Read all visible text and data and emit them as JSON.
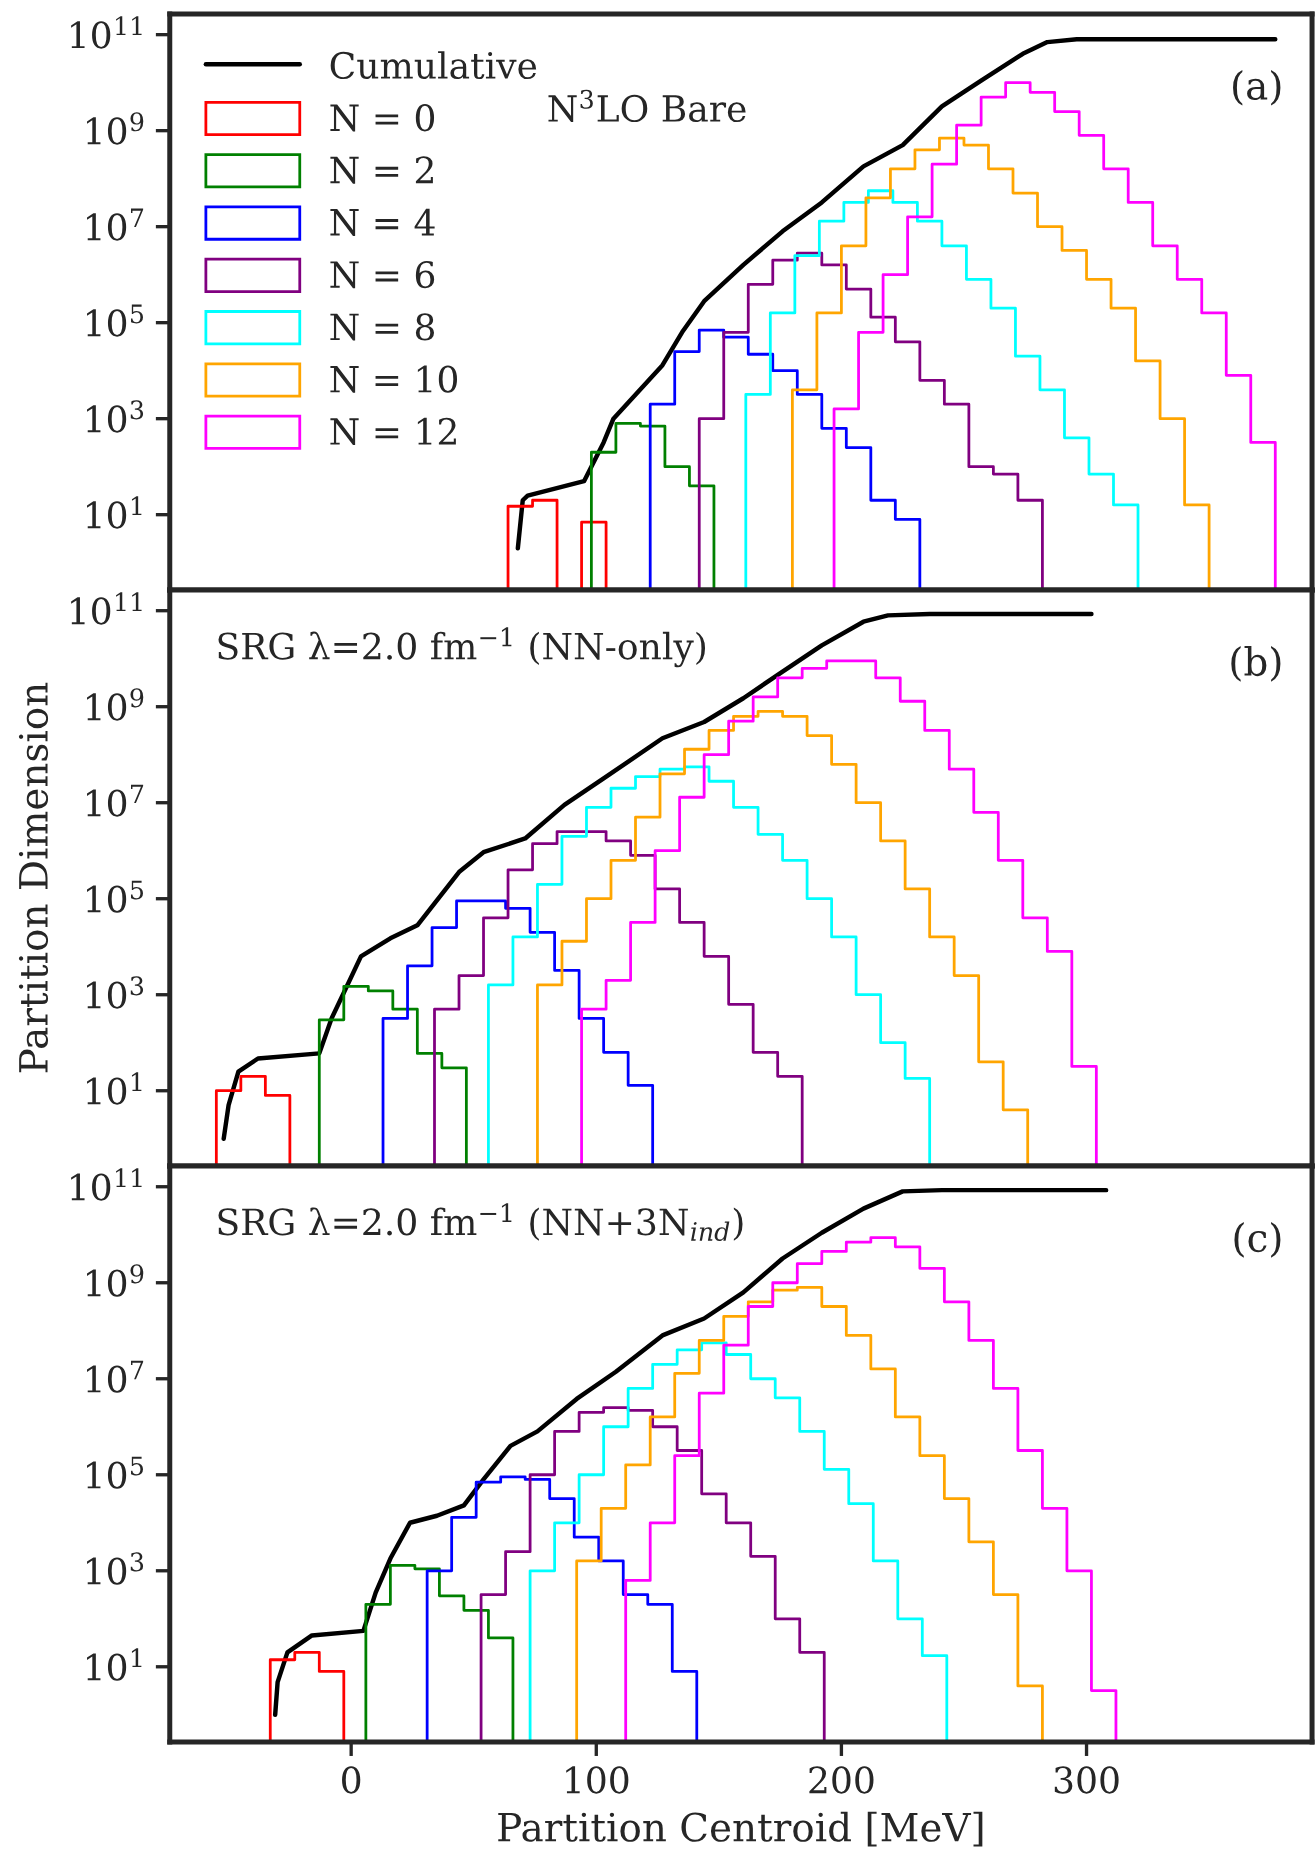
{
  "chart_data": [
    {
      "type": "histogram",
      "log": "y",
      "legend": "top left",
      "xlim": [
        -74,
        392
      ],
      "ylim": [
        0.27,
        270000000000.0
      ],
      "xticks": [
        0,
        100,
        200,
        300
      ],
      "tick_labels": "y",
      "grid": false,
      "yticks": [
        {
          "value": 10,
          "label": "10$^{1}$"
        },
        {
          "value": 1000,
          "label": "10$^{3}$"
        },
        {
          "value": 100000,
          "label": "10$^{5}$"
        },
        {
          "value": 10000000,
          "label": "10$^{7}$"
        },
        {
          "value": 1000000000,
          "label": "10$^{9}$"
        },
        {
          "value": 100000000000,
          "label": "10$^{11}$"
        }
      ],
      "annotations": [
        "(a)",
        "N$^{3}$LO Bare"
      ],
      "series": [
        {
          "name": "Cumulative",
          "type": "line",
          "color": "#000000",
          "x": [
            68,
            70,
            72,
            95,
            103,
            107,
            127,
            135,
            144,
            160,
            176,
            192,
            209,
            225,
            241,
            257,
            274,
            284,
            296,
            377
          ],
          "values": [
            2,
            20,
            25,
            50,
            320,
            1000,
            13000,
            63000,
            280000,
            1600000.0,
            8000000.0,
            32000000.0,
            180000000.0,
            500000000.0,
            3200000000.0,
            11000000000.0,
            40000000000.0,
            70000000000.0,
            80000000000.0,
            80000000000.0
          ]
        },
        {
          "name": "N = 0",
          "type": "histogram",
          "color": "#ff0000",
          "bins": [
            64,
            74,
            84,
            94,
            104
          ],
          "values": [
            15,
            20,
            null,
            7
          ]
        },
        {
          "name": "N = 2",
          "type": "histogram",
          "color": "#008000",
          "bins": [
            98,
            108,
            118,
            128,
            138,
            148
          ],
          "values": [
            200,
            800,
            700,
            100,
            40
          ]
        },
        {
          "name": "N = 4",
          "type": "histogram",
          "color": "#0000ff",
          "bins": [
            122,
            132,
            142,
            152,
            162,
            172,
            182,
            192,
            202,
            212,
            222,
            232
          ],
          "values": [
            2000,
            25000,
            70000,
            50000,
            22000,
            10000,
            3200,
            630,
            250,
            20,
            8
          ]
        },
        {
          "name": "N = 6",
          "type": "histogram",
          "color": "#800080",
          "bins": [
            142,
            152,
            162,
            172,
            182,
            192,
            202,
            212,
            222,
            232,
            242,
            252,
            262,
            272,
            282
          ],
          "values": [
            1000,
            63000,
            630000,
            2000000.0,
            2800000.0,
            1600000.0,
            500000,
            130000,
            40000,
            6300,
            2000,
            100,
            70,
            20
          ]
        },
        {
          "name": "N = 8",
          "type": "histogram",
          "color": "#00ffff",
          "bins": [
            161,
            171,
            181,
            191,
            201,
            211,
            221,
            231,
            241,
            251,
            261,
            271,
            281,
            291,
            301,
            311,
            321
          ],
          "values": [
            3200,
            160000,
            2500000.0,
            13000000.0,
            32000000.0,
            56000000.0,
            32000000.0,
            13000000.0,
            4000000.0,
            800000,
            200000,
            20000,
            4000,
            400,
            70,
            16
          ]
        },
        {
          "name": "N = 10",
          "type": "histogram",
          "color": "#ffa500",
          "bins": [
            180,
            190,
            200,
            210,
            220,
            230,
            240,
            250,
            260,
            270,
            280,
            290,
            300,
            310,
            320,
            330,
            340,
            350
          ],
          "values": [
            4000,
            160000,
            4000000.0,
            40000000.0,
            160000000.0,
            400000000.0,
            700000000.0,
            500000000.0,
            160000000.0,
            50000000.0,
            10000000.0,
            3200000.0,
            800000,
            200000,
            16000,
            1000,
            16
          ]
        },
        {
          "name": "N = 12",
          "type": "histogram",
          "color": "#ff00ff",
          "bins": [
            197,
            207,
            217,
            227,
            237,
            247,
            257,
            267,
            277,
            287,
            297,
            307,
            317,
            327,
            337,
            347,
            357,
            367,
            377
          ],
          "values": [
            1600,
            63000,
            1000000.0,
            16000000.0,
            200000000.0,
            1300000000.0,
            5000000000.0,
            10000000000.0,
            6300000000.0,
            2500000000.0,
            800000000.0,
            160000000.0,
            32000000.0,
            4000000.0,
            800000,
            160000,
            8000,
            320
          ]
        }
      ]
    },
    {
      "type": "histogram",
      "log": "y",
      "xlim": [
        -74,
        392
      ],
      "ylim": [
        0.27,
        270000000000.0
      ],
      "xticks": [
        0,
        100,
        200,
        300
      ],
      "tick_labels": "y",
      "grid": false,
      "ylabel": "Partition Dimension",
      "yticks": [
        {
          "value": 10,
          "label": "10$^{1}$"
        },
        {
          "value": 1000,
          "label": "10$^{3}$"
        },
        {
          "value": 100000,
          "label": "10$^{5}$"
        },
        {
          "value": 10000000,
          "label": "10$^{7}$"
        },
        {
          "value": 1000000000,
          "label": "10$^{9}$"
        },
        {
          "value": 100000000000,
          "label": "10$^{11}$"
        }
      ],
      "annotations": [
        "(b)",
        "SRG λ=2.0 fm$^{−1}$ (NN-only)"
      ],
      "series": [
        {
          "type": "line",
          "color": "#000000",
          "x": [
            -52,
            -50,
            -46,
            -38,
            -13,
            -8,
            -3,
            4,
            16,
            27,
            44,
            54,
            71,
            87,
            103,
            127,
            144,
            160,
            176,
            192,
            209,
            219,
            236,
            302
          ],
          "values": [
            1,
            5,
            25,
            47,
            60,
            320,
            1100,
            6300,
            15000,
            28000,
            360000,
            930000,
            1800000.0,
            9000000.0,
            32000000.0,
            220000000.0,
            480000000.0,
            1500000000.0,
            5400000000.0,
            19000000000.0,
            59000000000.0,
            80000000000.0,
            85000000000.0,
            85000000000.0
          ]
        },
        {
          "type": "histogram",
          "color": "#ff0000",
          "bins": [
            -55,
            -45,
            -35,
            -25
          ],
          "values": [
            10,
            20,
            8
          ]
        },
        {
          "type": "histogram",
          "color": "#008000",
          "bins": [
            -13,
            -3,
            7,
            17,
            27,
            37,
            47
          ],
          "values": [
            300,
            1500,
            1200,
            500,
            60,
            30
          ]
        },
        {
          "type": "histogram",
          "color": "#0000ff",
          "bins": [
            13,
            23,
            33,
            43,
            53,
            63,
            73,
            83,
            93,
            103,
            113,
            123
          ],
          "values": [
            320,
            4000,
            25000,
            90000,
            90000,
            63000,
            20000,
            3200,
            320,
            63,
            13
          ]
        },
        {
          "type": "histogram",
          "color": "#800080",
          "bins": [
            34,
            44,
            54,
            64,
            74,
            84,
            94,
            104,
            114,
            124,
            134,
            144,
            154,
            164,
            174,
            184
          ],
          "values": [
            500,
            2500,
            40000,
            400000,
            1400000.0,
            2500000.0,
            2500000.0,
            1600000.0,
            800000,
            160000,
            32000,
            6300,
            630,
            63,
            20
          ]
        },
        {
          "type": "histogram",
          "color": "#00ffff",
          "bins": [
            56,
            66,
            76,
            86,
            96,
            106,
            116,
            126,
            136,
            146,
            156,
            166,
            176,
            186,
            196,
            206,
            216,
            226,
            236
          ],
          "values": [
            1600,
            16000,
            200000,
            2000000.0,
            8000000.0,
            20000000.0,
            35000000.0,
            50000000.0,
            56000000.0,
            28000000.0,
            8000000.0,
            2200000.0,
            630000,
            100000,
            16000,
            1000,
            100,
            18
          ]
        },
        {
          "type": "histogram",
          "color": "#ffa500",
          "bins": [
            76,
            86,
            96,
            106,
            116,
            126,
            136,
            146,
            156,
            166,
            176,
            186,
            196,
            206,
            216,
            226,
            236,
            246,
            256,
            266,
            276
          ],
          "values": [
            1600,
            13000,
            100000,
            630000,
            5000000.0,
            40000000.0,
            130000000.0,
            320000000.0,
            630000000.0,
            800000000.0,
            630000000.0,
            250000000.0,
            63000000.0,
            10000000.0,
            1600000.0,
            160000,
            16000,
            2500,
            40,
            4
          ]
        },
        {
          "type": "histogram",
          "color": "#ff00ff",
          "bins": [
            94,
            104,
            114,
            124,
            134,
            144,
            154,
            164,
            174,
            184,
            194,
            204,
            214,
            224,
            234,
            244,
            254,
            264,
            274,
            284,
            294,
            304
          ],
          "values": [
            500,
            2000,
            32000,
            1000000.0,
            13000000.0,
            100000000.0,
            500000000.0,
            1600000000.0,
            4000000000.0,
            6300000000.0,
            9000000000.0,
            9000000000.0,
            4000000000.0,
            1300000000.0,
            320000000.0,
            50000000.0,
            6300000.0,
            630000,
            40000,
            8000,
            32
          ]
        }
      ]
    },
    {
      "type": "histogram",
      "log": "y",
      "xlim": [
        -74,
        392
      ],
      "ylim": [
        0.27,
        270000000000.0
      ],
      "xticks": [
        0,
        100,
        200,
        300
      ],
      "grid": false,
      "xlabel": "Partition Centroid [MeV]",
      "yticks": [
        {
          "value": 10,
          "label": "10$^{1}$"
        },
        {
          "value": 1000,
          "label": "10$^{3}$"
        },
        {
          "value": 100000,
          "label": "10$^{5}$"
        },
        {
          "value": 10000000,
          "label": "10$^{7}$"
        },
        {
          "value": 1000000000,
          "label": "10$^{9}$"
        },
        {
          "value": 100000000000,
          "label": "10$^{11}$"
        }
      ],
      "annotations": [
        "(c)",
        "SRG λ=2.0 fm$^{−1}$ (NN+3N$_{ind}$)"
      ],
      "series": [
        {
          "type": "line",
          "color": "#000000",
          "x": [
            -31,
            -30,
            -26,
            -16,
            5,
            10,
            16,
            24,
            35,
            46,
            54,
            65,
            76,
            92,
            108,
            127,
            144,
            160,
            176,
            192,
            209,
            225,
            241,
            308
          ],
          "values": [
            1,
            4.8,
            20,
            45,
            56,
            350,
            1800,
            10000,
            14000,
            23000,
            80000,
            400000,
            800000,
            3800000.0,
            14000000.0,
            80000000.0,
            180000000.0,
            630000000.0,
            3200000000.0,
            11000000000.0,
            35000000000.0,
            80000000000.0,
            85000000000.0,
            85000000000.0
          ]
        },
        {
          "type": "histogram",
          "color": "#ff0000",
          "bins": [
            -33,
            -23,
            -13,
            -3
          ],
          "values": [
            14,
            20,
            8
          ]
        },
        {
          "type": "histogram",
          "color": "#008000",
          "bins": [
            6,
            16,
            26,
            36,
            46,
            56,
            66
          ],
          "values": [
            200,
            1300,
            1100,
            300,
            150,
            40
          ]
        },
        {
          "type": "histogram",
          "color": "#0000ff",
          "bins": [
            31,
            41,
            51,
            61,
            71,
            81,
            91,
            101,
            111,
            121,
            131,
            141
          ],
          "values": [
            1000,
            13000,
            70000,
            90000,
            80000,
            32000,
            5000,
            1600,
            320,
            200,
            8
          ]
        },
        {
          "type": "histogram",
          "color": "#800080",
          "bins": [
            53,
            63,
            73,
            83,
            93,
            103,
            113,
            123,
            133,
            143,
            153,
            163,
            173,
            183,
            193
          ],
          "values": [
            320,
            2500,
            100000,
            800000,
            2000000.0,
            2500000.0,
            2200000.0,
            1000000.0,
            320000,
            40000,
            10000,
            2000,
            100,
            20
          ]
        },
        {
          "type": "histogram",
          "color": "#00ffff",
          "bins": [
            73,
            83,
            93,
            103,
            113,
            123,
            133,
            143,
            153,
            163,
            173,
            183,
            193,
            203,
            213,
            223,
            233,
            243
          ],
          "values": [
            1000,
            10000,
            100000,
            1000000.0,
            6300000.0,
            20000000.0,
            40000000.0,
            56000000.0,
            32000000.0,
            10000000.0,
            4000000.0,
            800000,
            130000,
            25000,
            1600,
            100,
            17
          ]
        },
        {
          "type": "histogram",
          "color": "#ffa500",
          "bins": [
            92,
            102,
            112,
            122,
            132,
            142,
            152,
            162,
            172,
            182,
            192,
            202,
            212,
            222,
            232,
            242,
            252,
            262,
            272,
            282
          ],
          "values": [
            1600,
            20000,
            160000,
            1600000.0,
            13000000.0,
            63000000.0,
            200000000.0,
            400000000.0,
            700000000.0,
            800000000.0,
            320000000.0,
            80000000.0,
            16000000.0,
            1600000.0,
            250000,
            32000,
            4000,
            320,
            4
          ]
        },
        {
          "type": "histogram",
          "color": "#ff00ff",
          "bins": [
            112,
            122,
            132,
            142,
            152,
            162,
            172,
            182,
            192,
            202,
            212,
            222,
            232,
            242,
            252,
            262,
            272,
            282,
            292,
            302,
            312
          ],
          "values": [
            630,
            10000,
            250000,
            5000000.0,
            50000000.0,
            320000000.0,
            1000000000.0,
            2500000000.0,
            4500000000.0,
            7000000000.0,
            8700000000.0,
            5600000000.0,
            2000000000.0,
            400000000.0,
            63000000.0,
            6300000.0,
            320000,
            20000,
            1000,
            3.2
          ]
        }
      ]
    }
  ]
}
